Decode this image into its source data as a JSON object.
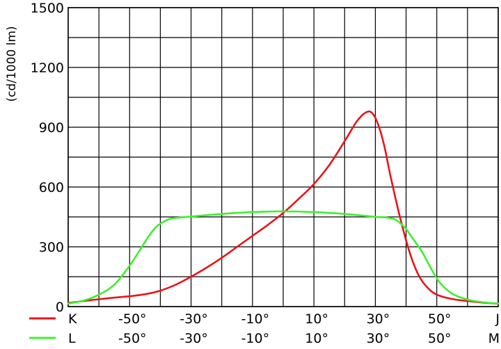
{
  "chart_data": {
    "type": "line",
    "ylabel": "(cd/1000 lm)",
    "ylim": [
      0,
      1500
    ],
    "yticks": [
      0,
      300,
      600,
      900,
      1200,
      1500
    ],
    "y_tick_labels": [
      "0",
      "300",
      "600",
      "900",
      "1200",
      "1500"
    ],
    "xlim": [
      -70,
      70
    ],
    "xticks": [
      -50,
      -30,
      -10,
      10,
      30,
      50
    ],
    "x_axis_rows": [
      {
        "name": "K",
        "tick_labels": [
          "-50°",
          "-30°",
          "-10°",
          "10°",
          "30°",
          "50°"
        ],
        "end_label": "J"
      },
      {
        "name": "L",
        "tick_labels": [
          "-50°",
          "-30°",
          "-10°",
          "10°",
          "30°",
          "50°"
        ],
        "end_label": "M"
      }
    ],
    "grid": true,
    "series": [
      {
        "name": "K",
        "color": "#e8141b",
        "x": [
          -70,
          -65,
          -60,
          -55,
          -50,
          -45,
          -40,
          -35,
          -30,
          -25,
          -20,
          -15,
          -10,
          -5,
          0,
          5,
          10,
          15,
          20,
          24,
          27,
          29,
          31,
          33,
          35,
          38,
          41,
          44,
          47,
          50,
          55,
          60,
          65,
          70
        ],
        "y": [
          18,
          28,
          37,
          45,
          52,
          62,
          80,
          110,
          150,
          195,
          245,
          300,
          355,
          410,
          470,
          540,
          615,
          710,
          830,
          930,
          975,
          970,
          910,
          800,
          650,
          450,
          280,
          160,
          95,
          60,
          38,
          28,
          20,
          14
        ]
      },
      {
        "name": "L",
        "color": "#3ef02e",
        "x": [
          -70,
          -65,
          -60,
          -55,
          -50,
          -46,
          -43,
          -41,
          -39,
          -37,
          -35,
          -30,
          -20,
          -10,
          0,
          10,
          20,
          30,
          33,
          36,
          38,
          40,
          42,
          45,
          48,
          51,
          55,
          60,
          65,
          70
        ],
        "y": [
          15,
          30,
          60,
          110,
          205,
          300,
          370,
          405,
          425,
          440,
          445,
          452,
          465,
          474,
          478,
          474,
          465,
          450,
          448,
          440,
          420,
          390,
          345,
          280,
          195,
          120,
          65,
          35,
          22,
          15
        ]
      }
    ]
  }
}
